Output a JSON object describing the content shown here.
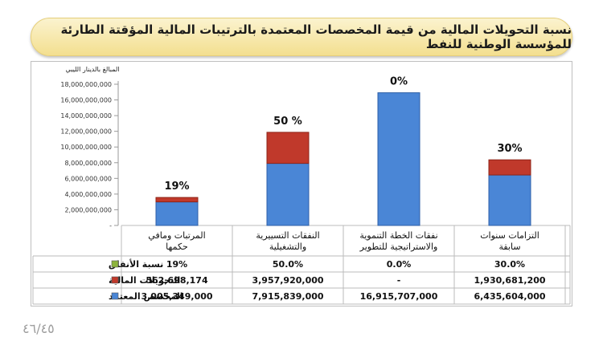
{
  "title": "نسبة التحويلات المالية من قيمة المخصصات المعتمدة بالترتيبات المالية المؤقتة الطارئة للمؤسسة الوطنية للنفط",
  "page_number": "٤٦/٤٥",
  "colors": {
    "allocation": "#4a86d6",
    "transfers": "#c0392b",
    "ratio": "#8db33c",
    "banner": "#f3df8f"
  },
  "chart_data": {
    "type": "bar",
    "stacked": true,
    "ylabel": "المبالغ بالدينار الليبي",
    "ylim": [
      0,
      18000000000
    ],
    "yticks": [
      "18,000,000,000",
      "16,000,000,000",
      "14,000,000,000",
      "12,000,000,000",
      "10,000,000,000",
      "8,000,000,000",
      "6,000,000,000",
      "4,000,000,000",
      "2,000,000,000",
      "-"
    ],
    "categories": [
      "المرتبات ومافي حكمها",
      "النفقات التسييرية والتشغيلية",
      "نفقات الخطة التنموية والاستراتيجية للتطوير",
      "التزامات سنوات سابقة"
    ],
    "bar_labels": [
      "19%",
      "50 %",
      "0%",
      "30%"
    ],
    "series": [
      {
        "name": "المخصص المعتمد",
        "values": [
          3005349000,
          7915839000,
          16915707000,
          6435604000
        ],
        "display": [
          "3,005,349,000",
          "7,915,839,000",
          "16,915,707,000",
          "6,435,604,000"
        ]
      },
      {
        "name": "التحويلات المالية",
        "values": [
          562698174,
          3957920000,
          0,
          1930681200
        ],
        "display": [
          "562,698,174",
          "3,957,920,000",
          "-",
          "1,930,681,200"
        ]
      },
      {
        "name": "نسبة الأنفاق",
        "values": [
          19,
          50,
          0,
          30
        ],
        "display": [
          "19%",
          "50.0%",
          "0.0%",
          "30.0%"
        ]
      }
    ],
    "grid": false
  }
}
